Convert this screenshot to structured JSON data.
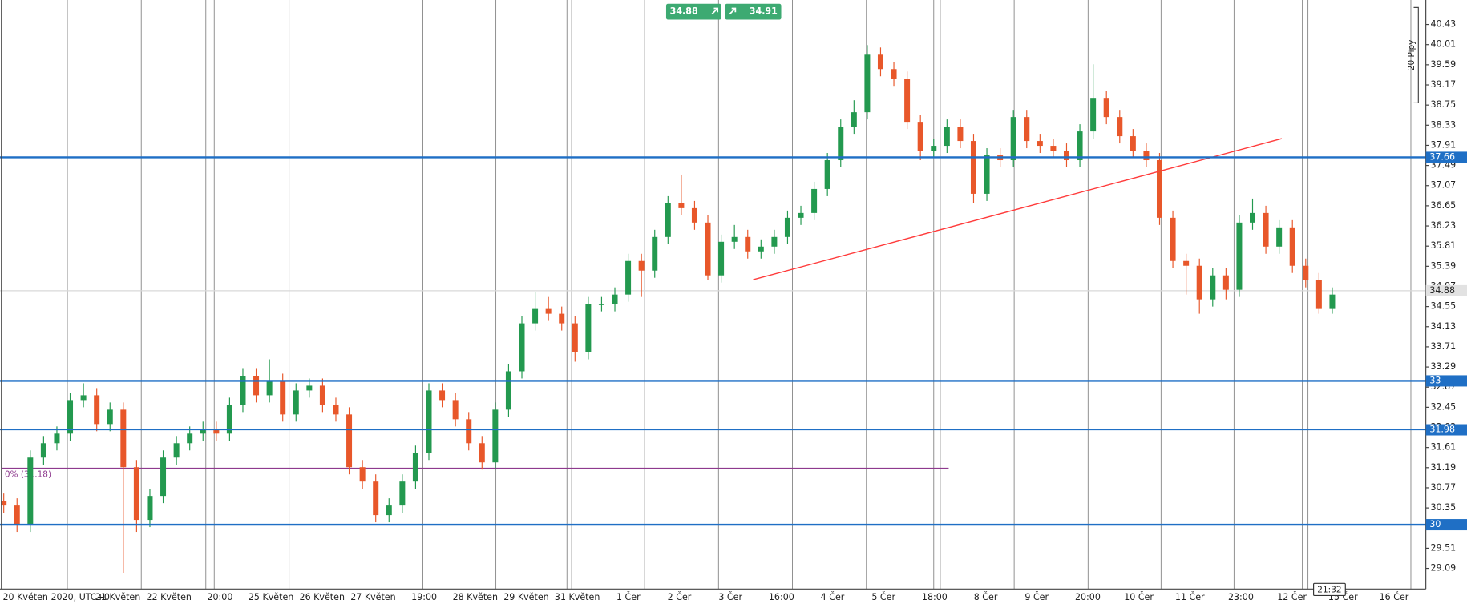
{
  "chart_data": {
    "type": "candlestick",
    "ylim": [
      28.66,
      40.94
    ],
    "yticks": [
      40.43,
      40.01,
      39.59,
      39.17,
      38.75,
      38.33,
      37.91,
      37.49,
      37.07,
      36.65,
      36.23,
      35.81,
      35.39,
      34.97,
      34.55,
      34.13,
      33.71,
      33.29,
      32.87,
      32.45,
      32.03,
      31.61,
      31.19,
      30.77,
      30.35,
      29.93,
      29.51,
      29.09
    ],
    "x_labels": [
      "20 Květen 2020, UTC+0",
      "21 Květen",
      "22 Květen",
      "20:00",
      "25 Květen",
      "26 Květen",
      "27 Květen",
      "19:00",
      "28 Květen",
      "29 Květen",
      "31 Květen",
      "1 Čer",
      "2 Čer",
      "3 Čer",
      "16:00",
      "4 Čer",
      "5 Čer",
      "18:00",
      "8 Čer",
      "9 Čer",
      "20:00",
      "10 Čer",
      "11 Čer",
      "23:00",
      "12 Čer",
      "15 Čer",
      "16 Čer"
    ],
    "up_color": "#23994f",
    "down_color": "#e8572a",
    "candles": [
      [
        30.5,
        30.65,
        30.25,
        30.4
      ],
      [
        30.4,
        30.55,
        29.85,
        30.0
      ],
      [
        30.0,
        31.55,
        29.85,
        31.4
      ],
      [
        31.4,
        31.85,
        31.25,
        31.7
      ],
      [
        31.7,
        32.05,
        31.55,
        31.9
      ],
      [
        31.9,
        32.75,
        31.75,
        32.6
      ],
      [
        32.6,
        32.95,
        32.45,
        32.7
      ],
      [
        32.7,
        32.85,
        31.95,
        32.1
      ],
      [
        32.1,
        32.55,
        31.95,
        32.4
      ],
      [
        32.4,
        32.55,
        29.0,
        31.2
      ],
      [
        31.2,
        31.35,
        29.85,
        30.1
      ],
      [
        30.1,
        30.75,
        29.95,
        30.6
      ],
      [
        30.6,
        31.55,
        30.45,
        31.4
      ],
      [
        31.4,
        31.85,
        31.25,
        31.7
      ],
      [
        31.7,
        32.05,
        31.55,
        31.9
      ],
      [
        31.9,
        32.15,
        31.75,
        32.0
      ],
      [
        32.0,
        32.15,
        31.75,
        31.9
      ],
      [
        31.9,
        32.65,
        31.75,
        32.5
      ],
      [
        32.5,
        33.25,
        32.35,
        33.1
      ],
      [
        33.1,
        33.25,
        32.55,
        32.7
      ],
      [
        32.7,
        33.45,
        32.55,
        33.0
      ],
      [
        33.0,
        33.15,
        32.15,
        32.3
      ],
      [
        32.3,
        32.95,
        32.15,
        32.8
      ],
      [
        32.8,
        33.05,
        32.65,
        32.9
      ],
      [
        32.9,
        33.05,
        32.35,
        32.5
      ],
      [
        32.5,
        32.65,
        32.15,
        32.3
      ],
      [
        32.3,
        32.45,
        31.05,
        31.2
      ],
      [
        31.2,
        31.35,
        30.75,
        30.9
      ],
      [
        30.9,
        31.05,
        30.05,
        30.2
      ],
      [
        30.2,
        30.55,
        30.05,
        30.4
      ],
      [
        30.4,
        31.05,
        30.25,
        30.9
      ],
      [
        30.9,
        31.65,
        30.75,
        31.5
      ],
      [
        31.5,
        32.95,
        31.35,
        32.8
      ],
      [
        32.8,
        32.95,
        32.45,
        32.6
      ],
      [
        32.6,
        32.75,
        32.05,
        32.2
      ],
      [
        32.2,
        32.35,
        31.55,
        31.7
      ],
      [
        31.7,
        31.85,
        31.15,
        31.3
      ],
      [
        31.3,
        32.55,
        31.15,
        32.4
      ],
      [
        32.4,
        33.35,
        32.25,
        33.2
      ],
      [
        33.2,
        34.35,
        33.05,
        34.2
      ],
      [
        34.2,
        34.85,
        34.05,
        34.5
      ],
      [
        34.5,
        34.75,
        34.25,
        34.4
      ],
      [
        34.4,
        34.55,
        34.05,
        34.2
      ],
      [
        34.2,
        34.35,
        33.4,
        33.6
      ],
      [
        33.6,
        34.75,
        33.45,
        34.6
      ],
      [
        34.6,
        34.75,
        34.45,
        34.6
      ],
      [
        34.6,
        34.95,
        34.45,
        34.8
      ],
      [
        34.8,
        35.65,
        34.65,
        35.5
      ],
      [
        35.5,
        35.65,
        34.75,
        35.3
      ],
      [
        35.3,
        36.15,
        35.15,
        36.0
      ],
      [
        36.0,
        36.85,
        35.85,
        36.7
      ],
      [
        36.7,
        37.3,
        36.45,
        36.6
      ],
      [
        36.6,
        36.75,
        36.15,
        36.3
      ],
      [
        36.3,
        36.45,
        35.1,
        35.2
      ],
      [
        35.2,
        36.05,
        35.05,
        35.9
      ],
      [
        35.9,
        36.25,
        35.75,
        36.0
      ],
      [
        36.0,
        36.15,
        35.55,
        35.7
      ],
      [
        35.7,
        35.95,
        35.55,
        35.8
      ],
      [
        35.8,
        36.15,
        35.65,
        36.0
      ],
      [
        36.0,
        36.55,
        35.85,
        36.4
      ],
      [
        36.4,
        36.65,
        36.25,
        36.5
      ],
      [
        36.5,
        37.15,
        36.35,
        37.0
      ],
      [
        37.0,
        37.75,
        36.85,
        37.6
      ],
      [
        37.6,
        38.45,
        37.45,
        38.3
      ],
      [
        38.3,
        38.85,
        38.15,
        38.6
      ],
      [
        38.6,
        40.0,
        38.45,
        39.8
      ],
      [
        39.8,
        39.95,
        39.35,
        39.5
      ],
      [
        39.5,
        39.65,
        39.15,
        39.3
      ],
      [
        39.3,
        39.45,
        38.25,
        38.4
      ],
      [
        38.4,
        38.55,
        37.6,
        37.8
      ],
      [
        37.8,
        38.05,
        37.65,
        37.9
      ],
      [
        37.9,
        38.45,
        37.75,
        38.3
      ],
      [
        38.3,
        38.45,
        37.85,
        38.0
      ],
      [
        38.0,
        38.15,
        36.7,
        36.9
      ],
      [
        36.9,
        37.85,
        36.75,
        37.7
      ],
      [
        37.7,
        37.85,
        37.45,
        37.6
      ],
      [
        37.6,
        38.65,
        37.45,
        38.5
      ],
      [
        38.5,
        38.65,
        37.85,
        38.0
      ],
      [
        38.0,
        38.15,
        37.75,
        37.9
      ],
      [
        37.9,
        38.05,
        37.65,
        37.8
      ],
      [
        37.8,
        37.95,
        37.45,
        37.6
      ],
      [
        37.6,
        38.35,
        37.45,
        38.2
      ],
      [
        38.2,
        39.6,
        38.05,
        38.9
      ],
      [
        38.9,
        39.05,
        38.35,
        38.5
      ],
      [
        38.5,
        38.65,
        37.95,
        38.1
      ],
      [
        38.1,
        38.25,
        37.65,
        37.8
      ],
      [
        37.8,
        37.95,
        37.45,
        37.6
      ],
      [
        37.6,
        37.75,
        36.25,
        36.4
      ],
      [
        36.4,
        36.55,
        35.35,
        35.5
      ],
      [
        35.5,
        35.65,
        34.8,
        35.4
      ],
      [
        35.4,
        35.55,
        34.4,
        34.7
      ],
      [
        34.7,
        35.35,
        34.55,
        35.2
      ],
      [
        35.2,
        35.35,
        34.7,
        34.9
      ],
      [
        34.9,
        36.45,
        34.75,
        36.3
      ],
      [
        36.3,
        36.8,
        36.15,
        36.5
      ],
      [
        36.5,
        36.65,
        35.65,
        35.8
      ],
      [
        35.8,
        36.35,
        35.65,
        36.2
      ],
      [
        36.2,
        36.35,
        35.25,
        35.4
      ],
      [
        35.4,
        35.55,
        34.95,
        35.1
      ],
      [
        35.1,
        35.25,
        34.4,
        34.5
      ],
      [
        34.5,
        34.95,
        34.4,
        34.8
      ]
    ],
    "levels": [
      {
        "value": 37.66,
        "label": "37.66",
        "width": 2
      },
      {
        "value": 33,
        "label": "33",
        "width": 2
      },
      {
        "value": 31.98,
        "label": "31.98",
        "width": 1
      },
      {
        "value": 30,
        "label": "30",
        "width": 2
      }
    ],
    "level_color": "#1f6fc5",
    "trendline": {
      "from": 35.11,
      "to": 38.05,
      "color": "#ff3b3b"
    },
    "fib": {
      "value": 31.18,
      "label": "0% (31.18)",
      "color": "#8e3a8e"
    },
    "bid": 34.88,
    "ask": 34.91,
    "pip_label": "20 Pipy",
    "time_label": "21:32"
  }
}
